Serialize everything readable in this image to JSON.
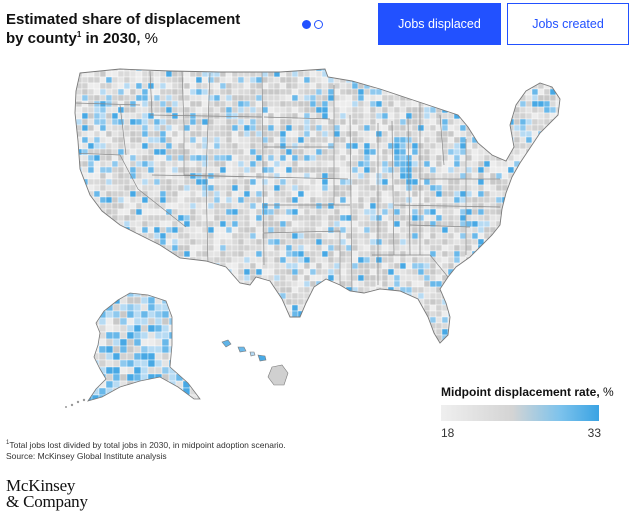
{
  "header": {
    "title_part1": "Estimated share of displacement by county",
    "title_sup": "1",
    "title_part2": " in 2030, ",
    "title_unit": "%"
  },
  "pager": {
    "total": 2,
    "active": 1
  },
  "tabs": [
    {
      "label": "Jobs displaced",
      "selected": true
    },
    {
      "label": "Jobs created",
      "selected": false
    }
  ],
  "legend": {
    "title": "Midpoint displacement rate, ",
    "unit": "%",
    "min_label": "18",
    "max_label": "33"
  },
  "colors": {
    "accent": "#2251ff",
    "scale_low": "#ececec",
    "scale_mid": "#c9c9c9",
    "scale_high": "#3aa3e3",
    "county_border": "#ffffff",
    "state_border": "#7a7a7a"
  },
  "footnote": {
    "sup": "1",
    "line1": "Total jobs lost divided by total jobs in 2030, in midpoint adoption scenario.",
    "line2": "Source: McKinsey Global Institute analysis"
  },
  "logo": {
    "line1": "McKinsey",
    "line2": "& Company"
  }
}
